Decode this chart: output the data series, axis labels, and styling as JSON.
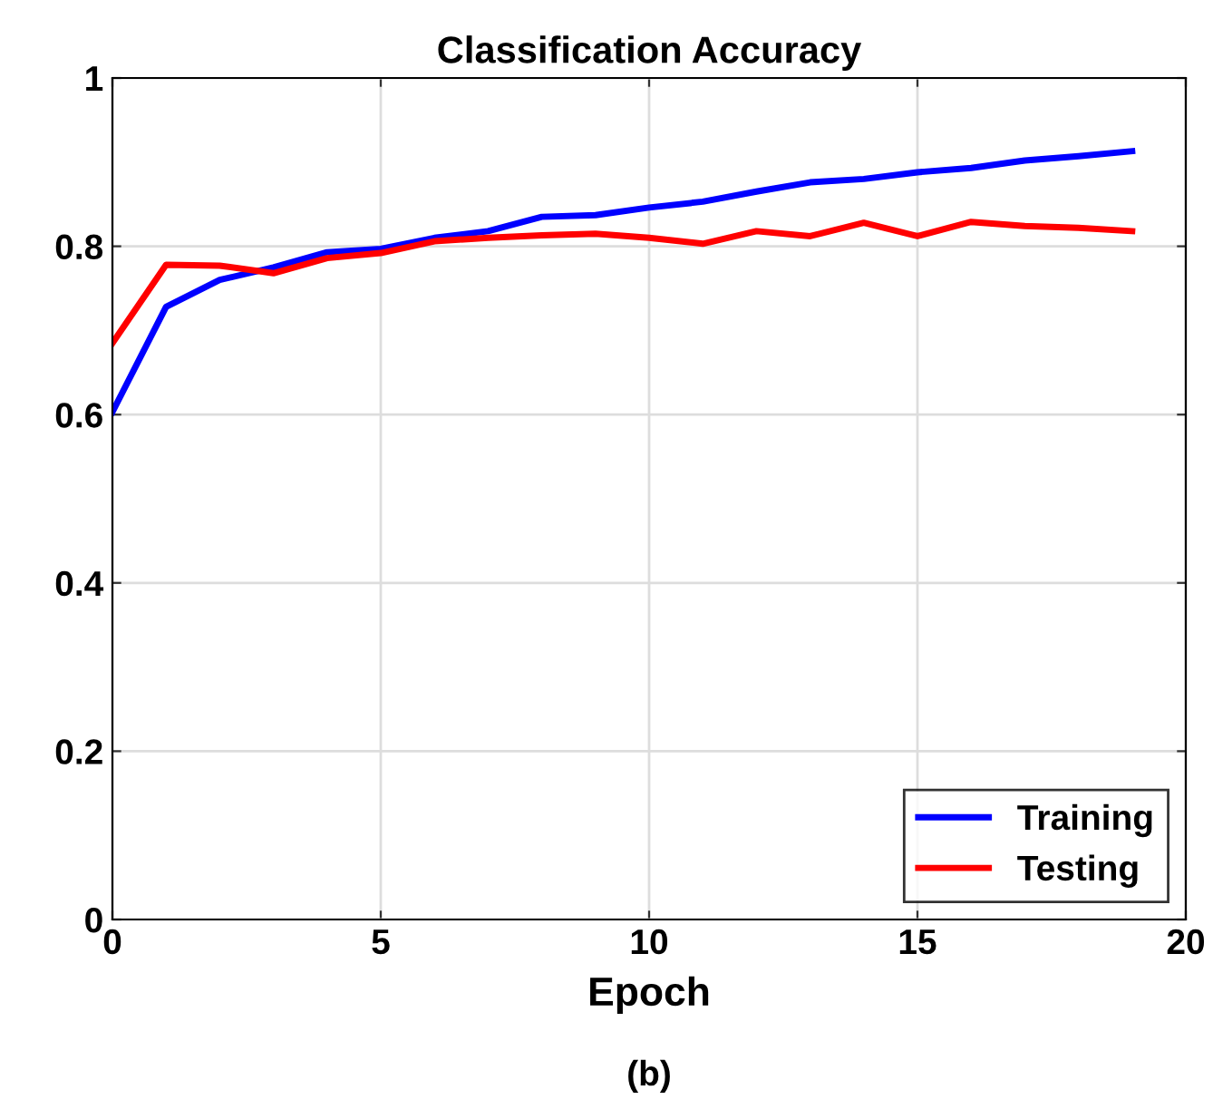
{
  "chart_data": {
    "type": "line",
    "title": "Classification Accuracy",
    "xlabel": "Epoch",
    "annotations": [
      "(b)"
    ],
    "x": [
      0,
      1,
      2,
      3,
      4,
      5,
      6,
      7,
      8,
      9,
      10,
      11,
      12,
      13,
      14,
      15,
      16,
      17,
      18,
      19
    ],
    "series": [
      {
        "name": "Training",
        "color": "#0000ff",
        "values": [
          0.603,
          0.728,
          0.76,
          0.775,
          0.793,
          0.797,
          0.81,
          0.818,
          0.835,
          0.837,
          0.846,
          0.853,
          0.865,
          0.876,
          0.88,
          0.888,
          0.893,
          0.902,
          0.907,
          0.913
        ]
      },
      {
        "name": "Testing",
        "color": "#ff0000",
        "values": [
          0.685,
          0.778,
          0.777,
          0.768,
          0.786,
          0.792,
          0.806,
          0.81,
          0.813,
          0.815,
          0.81,
          0.803,
          0.818,
          0.812,
          0.828,
          0.812,
          0.829,
          0.824,
          0.822,
          0.818
        ]
      }
    ],
    "xlim": [
      0,
      20
    ],
    "xticks": [
      0,
      5,
      10,
      15,
      20
    ],
    "ylim": [
      0,
      1
    ],
    "yticks": [
      0,
      0.2,
      0.4,
      0.6,
      0.8,
      1
    ],
    "grid": true,
    "legend": "bottom right",
    "marker": "none",
    "line_style": "solid"
  }
}
